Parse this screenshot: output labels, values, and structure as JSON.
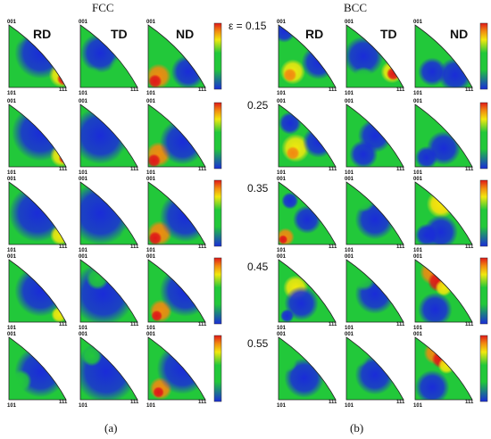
{
  "figure": {
    "panels": [
      {
        "id": "a",
        "title": "FCC",
        "label": "(a)"
      },
      {
        "id": "b",
        "title": "BCC",
        "label": "(b)"
      }
    ],
    "column_headers": [
      "RD",
      "TD",
      "ND"
    ],
    "pole_labels": {
      "top": "001",
      "bottom_left": "101",
      "bottom_right": "111"
    },
    "strain_values": [
      "ε = 0.15",
      "0.25",
      "0.35",
      "0.45",
      "0.55"
    ],
    "colors": {
      "blue": "#1a2cd8",
      "green": "#22c83a",
      "yellow": "#f2e80e",
      "orange": "#f28a10",
      "red": "#e01818"
    }
  }
}
